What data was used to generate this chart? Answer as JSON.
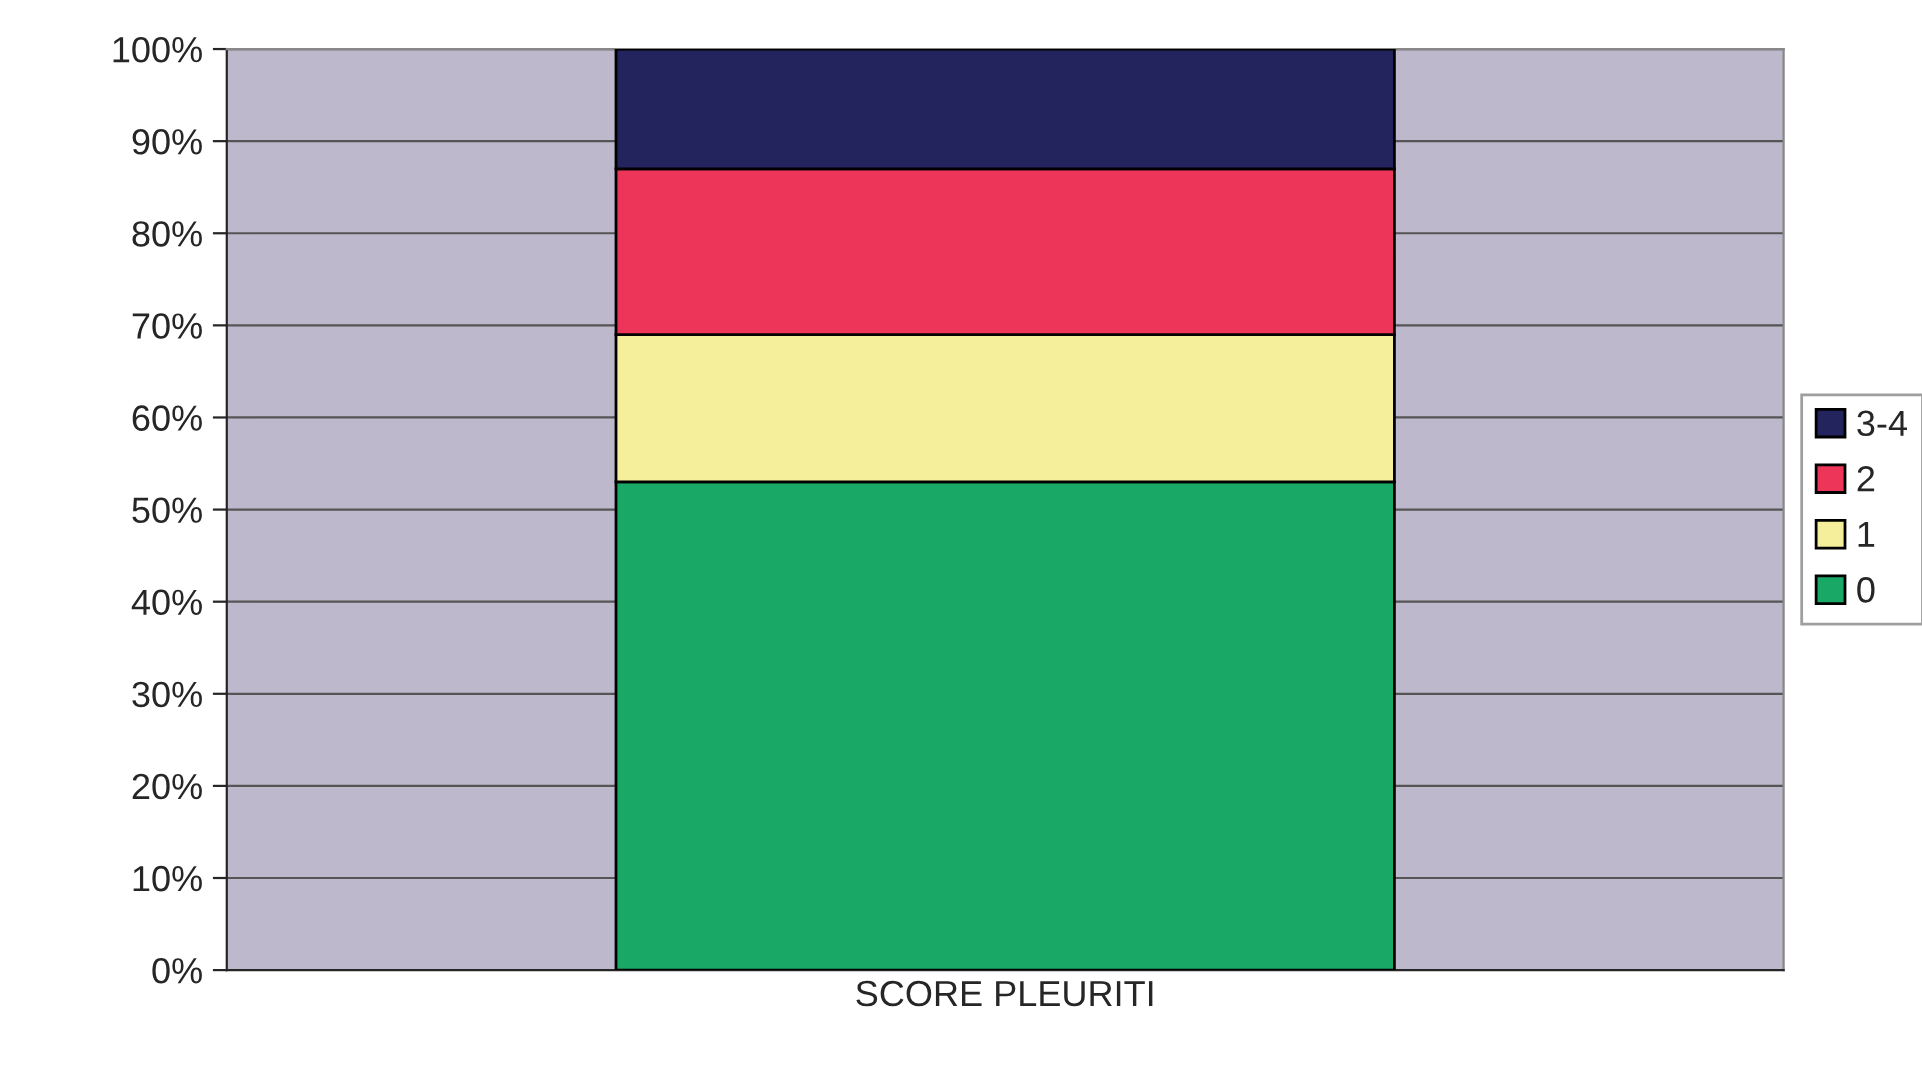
{
  "chart_data": {
    "type": "bar",
    "stacked": true,
    "categories": [
      "SCORE PLEURITI"
    ],
    "series": [
      {
        "name": "0",
        "color": "#1aa866",
        "values": [
          53
        ]
      },
      {
        "name": "1",
        "color": "#f5ee9a",
        "values": [
          16
        ]
      },
      {
        "name": "2",
        "color": "#ec3558",
        "values": [
          18
        ]
      },
      {
        "name": "3-4",
        "color": "#23235e",
        "values": [
          13
        ]
      }
    ],
    "ylim": [
      0,
      100
    ],
    "yticks": [
      {
        "value": 0,
        "label": "0%"
      },
      {
        "value": 10,
        "label": "10%"
      },
      {
        "value": 20,
        "label": "20%"
      },
      {
        "value": 30,
        "label": "30%"
      },
      {
        "value": 40,
        "label": "40%"
      },
      {
        "value": 50,
        "label": "50%"
      },
      {
        "value": 60,
        "label": "60%"
      },
      {
        "value": 70,
        "label": "70%"
      },
      {
        "value": 80,
        "label": "80%"
      },
      {
        "value": 90,
        "label": "90%"
      },
      {
        "value": 100,
        "label": "100%"
      }
    ],
    "grid": "y",
    "legend": "right"
  }
}
